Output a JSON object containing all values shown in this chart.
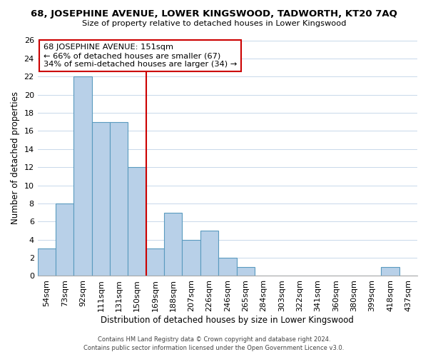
{
  "title": "68, JOSEPHINE AVENUE, LOWER KINGSWOOD, TADWORTH, KT20 7AQ",
  "subtitle": "Size of property relative to detached houses in Lower Kingswood",
  "xlabel": "Distribution of detached houses by size in Lower Kingswood",
  "ylabel": "Number of detached properties",
  "bar_labels": [
    "54sqm",
    "73sqm",
    "92sqm",
    "111sqm",
    "131sqm",
    "150sqm",
    "169sqm",
    "188sqm",
    "207sqm",
    "226sqm",
    "246sqm",
    "265sqm",
    "284sqm",
    "303sqm",
    "322sqm",
    "341sqm",
    "360sqm",
    "380sqm",
    "399sqm",
    "418sqm",
    "437sqm"
  ],
  "bar_values": [
    3,
    8,
    22,
    17,
    17,
    12,
    3,
    7,
    4,
    5,
    2,
    1,
    0,
    0,
    0,
    0,
    0,
    0,
    0,
    1,
    0
  ],
  "bar_color": "#b8d0e8",
  "bar_edge_color": "#5a9abf",
  "vline_x": 5.5,
  "vline_color": "#cc0000",
  "ylim": [
    0,
    26
  ],
  "yticks": [
    0,
    2,
    4,
    6,
    8,
    10,
    12,
    14,
    16,
    18,
    20,
    22,
    24,
    26
  ],
  "annotation_title": "68 JOSEPHINE AVENUE: 151sqm",
  "annotation_line1": "← 66% of detached houses are smaller (67)",
  "annotation_line2": "34% of semi-detached houses are larger (34) →",
  "annotation_box_color": "#ffffff",
  "annotation_box_edge": "#cc0000",
  "footer1": "Contains HM Land Registry data © Crown copyright and database right 2024.",
  "footer2": "Contains public sector information licensed under the Open Government Licence v3.0.",
  "background_color": "#ffffff",
  "grid_color": "#c8d8ea"
}
